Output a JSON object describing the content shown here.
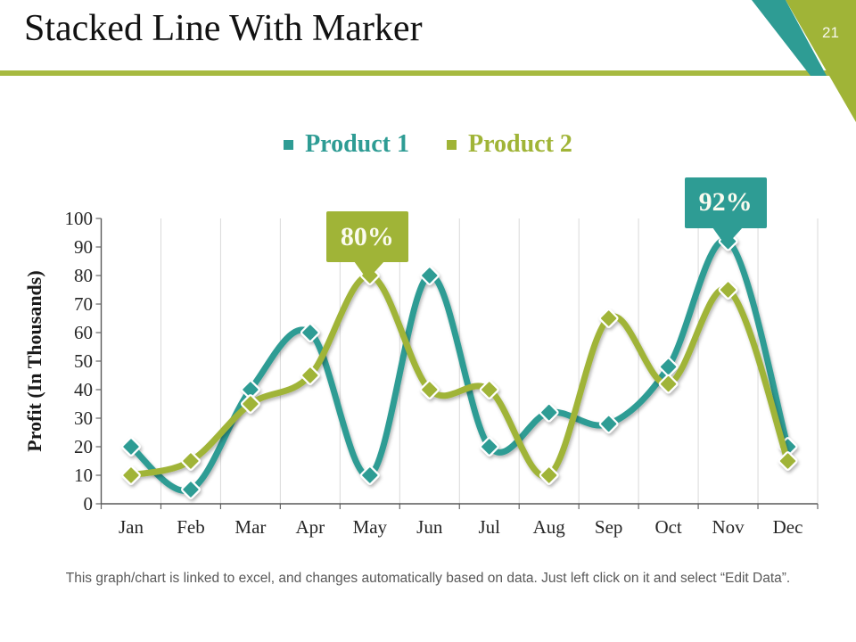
{
  "slide": {
    "title": "Stacked Line With Marker",
    "page_number": "21",
    "footer": "This graph/chart is linked to excel, and changes automatically based on data. Just left click on it and select “Edit Data”.",
    "accent_teal": "#2E9C94",
    "accent_olive": "#A0B437",
    "rule_color": "#A7BA40"
  },
  "chart_data": {
    "type": "line",
    "title": "",
    "categories": [
      "Jan",
      "Feb",
      "Mar",
      "Apr",
      "May",
      "Jun",
      "Jul",
      "Aug",
      "Sep",
      "Oct",
      "Nov",
      "Dec"
    ],
    "series": [
      {
        "name": "Product 1",
        "color": "#2E9C94",
        "values": [
          20,
          5,
          40,
          60,
          10,
          80,
          20,
          32,
          28,
          48,
          92,
          20
        ]
      },
      {
        "name": "Product 2",
        "color": "#A0B437",
        "values": [
          10,
          15,
          35,
          45,
          80,
          40,
          40,
          10,
          65,
          42,
          75,
          15
        ]
      }
    ],
    "xlabel": "",
    "ylabel": "Profit (In Thousands)",
    "ylim": [
      0,
      100
    ],
    "yticks": [
      0,
      10,
      20,
      30,
      40,
      50,
      60,
      70,
      80,
      90,
      100
    ],
    "grid": "vertical",
    "legend_position": "top",
    "marker": "diamond",
    "smooth": true,
    "annotations": [
      {
        "text": "80%",
        "series": "Product 2",
        "category": "May"
      },
      {
        "text": "92%",
        "series": "Product 1",
        "category": "Nov"
      }
    ]
  }
}
